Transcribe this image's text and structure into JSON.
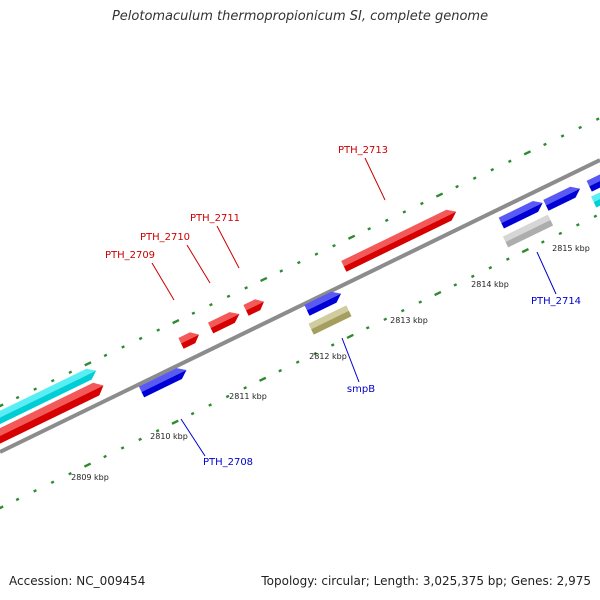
{
  "title": "Pelotomaculum thermopropionicum SI, complete genome",
  "footer": {
    "accession": "Accession: NC_009454",
    "summary": "Topology: circular; Length: 3,025,375 bp; Genes: 2,975"
  },
  "colors": {
    "backbone": "#8c8c8c",
    "tick": "#2e8b2e",
    "label_forward": "#cc0000",
    "label_reverse": "#0000cc"
  },
  "tick_labels": [
    "2809 kbp",
    "2810 kbp",
    "2811 kbp",
    "2812 kbp",
    "2813 kbp",
    "2814 kbp",
    "2815 kbp"
  ],
  "genes": [
    {
      "name": "",
      "strand": "forward",
      "color": "#00e5ee"
    },
    {
      "name": "",
      "strand": "forward",
      "color": "#ee0000"
    },
    {
      "name": "PTH_2709",
      "strand": "forward",
      "color": "#ee0000"
    },
    {
      "name": "PTH_2710",
      "strand": "forward",
      "color": "#ee0000"
    },
    {
      "name": "PTH_2711",
      "strand": "forward",
      "color": "#ee0000"
    },
    {
      "name": "PTH_2713",
      "strand": "forward",
      "color": "#ee0000"
    },
    {
      "name": "PTH_2708",
      "strand": "reverse",
      "color": "#0000ee"
    },
    {
      "name": "",
      "strand": "reverse",
      "color": "#0000ee"
    },
    {
      "name": "smpB",
      "strand": "reverse",
      "color": "#b8b06a"
    },
    {
      "name": "",
      "strand": "reverse",
      "color": "#0000ee"
    },
    {
      "name": "PTH_2714",
      "strand": "reverse",
      "color": "#c0c0c0"
    },
    {
      "name": "",
      "strand": "reverse",
      "color": "#0000ee"
    },
    {
      "name": "",
      "strand": "reverse",
      "color": "#0000ee"
    },
    {
      "name": "",
      "strand": "reverse",
      "color": "#00e5ee"
    }
  ]
}
